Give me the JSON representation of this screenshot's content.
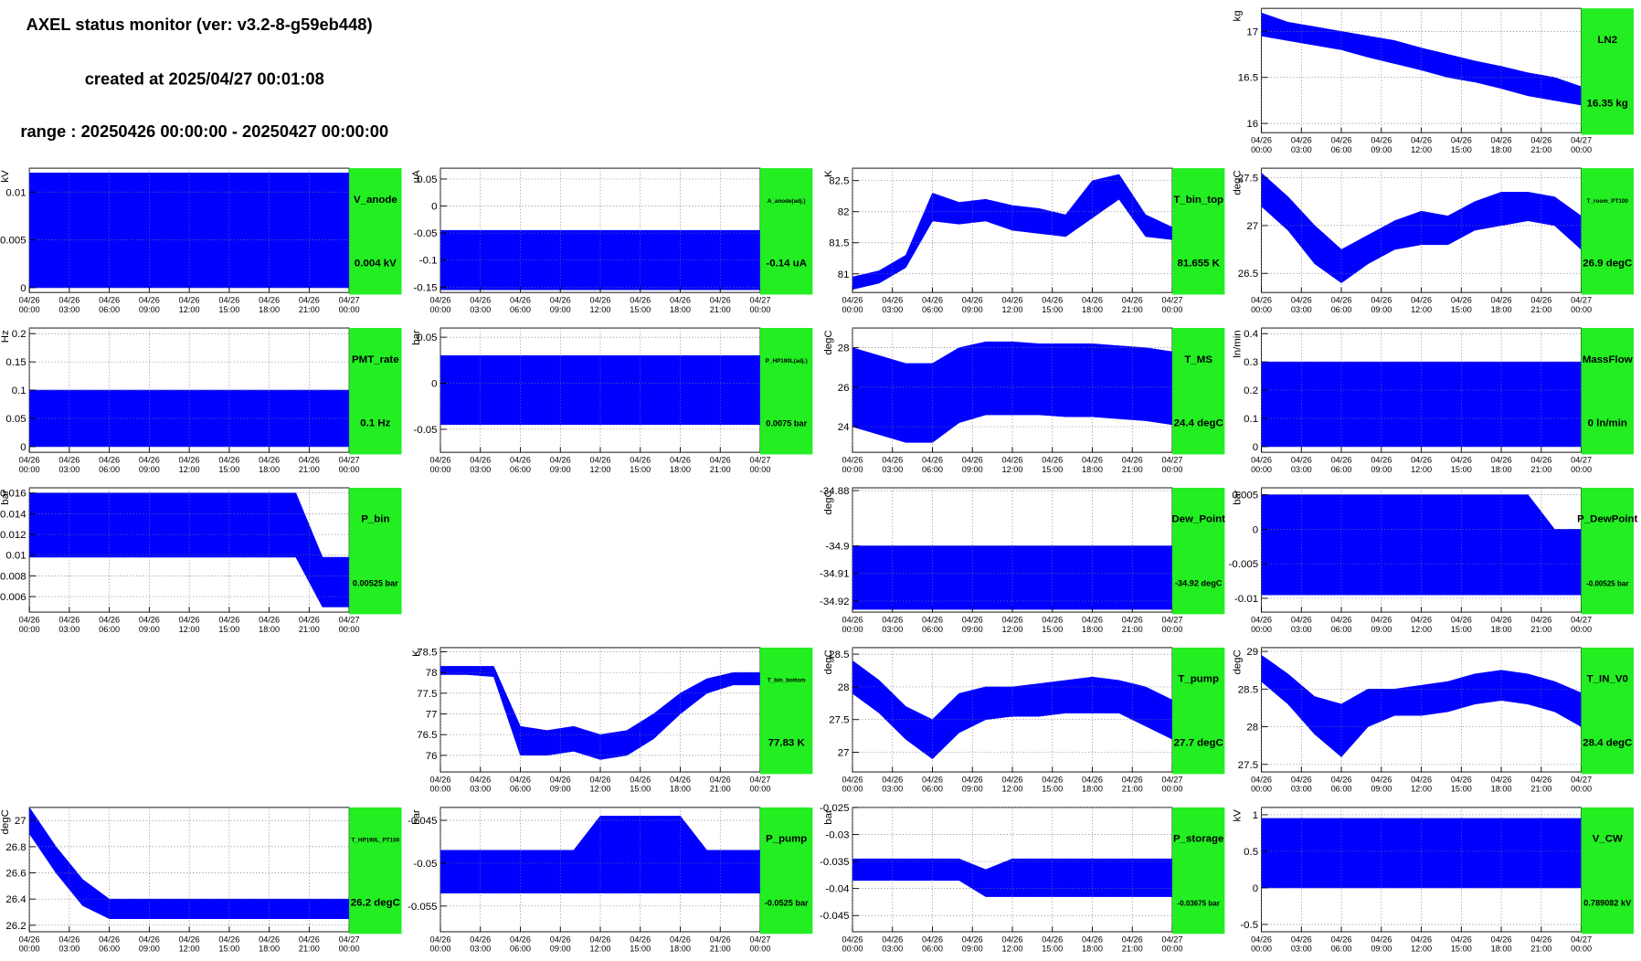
{
  "header": {
    "title": "AXEL status monitor (ver: v3.2-8-g59eb448)",
    "created": "created at 2025/04/27 00:01:08",
    "range": "range : 20250426 00:00:00 - 20250427 00:00:00"
  },
  "time_axis": {
    "xlim": [
      0,
      24
    ],
    "xticks": [
      {
        "value": 0,
        "label": "04/26 00:00"
      },
      {
        "value": 3,
        "label": "04/26 03:00"
      },
      {
        "value": 6,
        "label": "04/26 06:00"
      },
      {
        "value": 9,
        "label": "04/26 09:00"
      },
      {
        "value": 12,
        "label": "04/26 12:00"
      },
      {
        "value": 15,
        "label": "04/26 15:00"
      },
      {
        "value": 18,
        "label": "04/26 18:00"
      },
      {
        "value": 21,
        "label": "04/26 21:00"
      },
      {
        "value": 24,
        "label": "04/27 00:00"
      }
    ]
  },
  "chart_data": [
    {
      "type": "line",
      "title": "LN2",
      "ylabel": "kg",
      "status": "16.35 kg",
      "color": "#0000ff",
      "ylim": [
        15.9,
        17.25
      ],
      "yticks": [
        16,
        16.5,
        17
      ],
      "x": [
        0,
        2,
        4,
        6,
        8,
        10,
        12,
        14,
        16,
        18,
        20,
        22,
        24
      ],
      "high": [
        17.2,
        17.1,
        17.05,
        17.0,
        16.95,
        16.9,
        16.82,
        16.75,
        16.68,
        16.62,
        16.55,
        16.5,
        16.4
      ],
      "low": [
        16.95,
        16.9,
        16.85,
        16.8,
        16.72,
        16.65,
        16.58,
        16.5,
        16.45,
        16.38,
        16.3,
        16.25,
        16.2
      ]
    },
    {
      "type": "line",
      "title": "V_anode",
      "ylabel": "kV",
      "status": "0.004 kV",
      "color": "#0000ff",
      "ylim": [
        -0.0005,
        0.0125
      ],
      "yticks": [
        0,
        0.005,
        0.01
      ],
      "x": [
        0,
        2,
        4,
        6,
        8,
        10,
        12,
        14,
        16,
        18,
        20,
        22,
        24
      ],
      "high": [
        0.012,
        0.012,
        0.012,
        0.012,
        0.012,
        0.012,
        0.012,
        0.012,
        0.012,
        0.012,
        0.012,
        0.012,
        0.012
      ],
      "low": [
        0,
        0,
        0,
        0,
        0,
        0,
        0,
        0,
        0,
        0,
        0,
        0,
        0
      ]
    },
    {
      "type": "line",
      "title": "A_anode(adj.)",
      "ylabel": "uA",
      "status": "-0.14 uA",
      "color": "#0000ff",
      "ylim": [
        -0.16,
        0.07
      ],
      "yticks": [
        -0.15,
        -0.1,
        -0.05,
        0,
        0.05
      ],
      "x": [
        0,
        2,
        4,
        6,
        8,
        10,
        12,
        14,
        16,
        18,
        20,
        22,
        24
      ],
      "high": [
        -0.045,
        -0.045,
        -0.045,
        -0.045,
        -0.045,
        -0.045,
        -0.045,
        -0.045,
        -0.045,
        -0.045,
        -0.045,
        -0.045,
        -0.045
      ],
      "low": [
        -0.155,
        -0.155,
        -0.155,
        -0.155,
        -0.155,
        -0.155,
        -0.155,
        -0.155,
        -0.155,
        -0.155,
        -0.155,
        -0.155,
        -0.155
      ]
    },
    {
      "type": "line",
      "title": "T_bin_top",
      "ylabel": "K",
      "status": "81.655 K",
      "color": "#0000ff",
      "ylim": [
        80.7,
        82.7
      ],
      "yticks": [
        81,
        81.5,
        82,
        82.5
      ],
      "x": [
        0,
        2,
        4,
        6,
        8,
        10,
        12,
        14,
        16,
        18,
        20,
        22,
        24
      ],
      "high": [
        80.95,
        81.05,
        81.3,
        82.3,
        82.15,
        82.2,
        82.1,
        82.05,
        81.95,
        82.5,
        82.6,
        81.95,
        81.75
      ],
      "low": [
        80.75,
        80.85,
        81.1,
        81.85,
        81.8,
        81.85,
        81.7,
        81.65,
        81.6,
        81.9,
        82.2,
        81.6,
        81.55
      ]
    },
    {
      "type": "line",
      "title": "T_room_PT100",
      "ylabel": "degC",
      "status": "26.9 degC",
      "color": "#0000ff",
      "ylim": [
        26.3,
        27.6
      ],
      "yticks": [
        26.5,
        27,
        27.5
      ],
      "x": [
        0,
        2,
        4,
        6,
        8,
        10,
        12,
        14,
        16,
        18,
        20,
        22,
        24
      ],
      "high": [
        27.55,
        27.3,
        27.0,
        26.75,
        26.9,
        27.05,
        27.15,
        27.1,
        27.25,
        27.35,
        27.35,
        27.3,
        27.1
      ],
      "low": [
        27.2,
        26.95,
        26.6,
        26.4,
        26.6,
        26.75,
        26.8,
        26.8,
        26.95,
        27.0,
        27.05,
        27.0,
        26.75
      ]
    },
    {
      "type": "line",
      "title": "PMT_rate",
      "ylabel": "Hz",
      "status": "0.1 Hz",
      "color": "#0000ff",
      "ylim": [
        -0.01,
        0.21
      ],
      "yticks": [
        0,
        0.05,
        0.1,
        0.15,
        0.2
      ],
      "x": [
        0,
        2,
        4,
        6,
        8,
        10,
        12,
        14,
        16,
        18,
        20,
        22,
        24
      ],
      "high": [
        0.1,
        0.1,
        0.1,
        0.1,
        0.1,
        0.1,
        0.1,
        0.1,
        0.1,
        0.1,
        0.1,
        0.1,
        0.1
      ],
      "low": [
        0,
        0,
        0,
        0,
        0,
        0,
        0,
        0,
        0,
        0,
        0,
        0,
        0
      ]
    },
    {
      "type": "line",
      "title": "P_HP190L(adj.)",
      "ylabel": "bar",
      "status": "0.0075 bar",
      "color": "#0000ff",
      "ylim": [
        -0.075,
        0.06
      ],
      "yticks": [
        -0.05,
        0,
        0.05
      ],
      "x": [
        0,
        2,
        4,
        6,
        8,
        10,
        12,
        14,
        16,
        18,
        20,
        22,
        24
      ],
      "high": [
        0.03,
        0.03,
        0.03,
        0.03,
        0.03,
        0.03,
        0.03,
        0.03,
        0.03,
        0.03,
        0.03,
        0.03,
        0.03
      ],
      "low": [
        -0.045,
        -0.045,
        -0.045,
        -0.045,
        -0.045,
        -0.045,
        -0.045,
        -0.045,
        -0.045,
        -0.045,
        -0.045,
        -0.045,
        -0.045
      ]
    },
    {
      "type": "line",
      "title": "T_MS",
      "ylabel": "degC",
      "status": "24.4 degC",
      "color": "#0000ff",
      "ylim": [
        22.7,
        29
      ],
      "yticks": [
        24,
        26,
        28
      ],
      "x": [
        0,
        2,
        4,
        6,
        8,
        10,
        12,
        14,
        16,
        18,
        20,
        22,
        24
      ],
      "high": [
        28,
        27.6,
        27.2,
        27.2,
        28,
        28.3,
        28.3,
        28.2,
        28.2,
        28.2,
        28.1,
        28.0,
        27.8
      ],
      "low": [
        24,
        23.6,
        23.2,
        23.2,
        24.2,
        24.6,
        24.6,
        24.6,
        24.5,
        24.5,
        24.4,
        24.3,
        24.1
      ]
    },
    {
      "type": "line",
      "title": "MassFlow",
      "ylabel": "ln/min",
      "status": "0 ln/min",
      "color": "#0000ff",
      "ylim": [
        -0.02,
        0.42
      ],
      "yticks": [
        0,
        0.1,
        0.2,
        0.3,
        0.4
      ],
      "x": [
        0,
        2,
        4,
        6,
        8,
        10,
        12,
        14,
        16,
        18,
        20,
        22,
        24
      ],
      "high": [
        0.3,
        0.3,
        0.3,
        0.3,
        0.3,
        0.3,
        0.3,
        0.3,
        0.3,
        0.3,
        0.3,
        0.3,
        0.3
      ],
      "low": [
        0,
        0,
        0,
        0,
        0,
        0,
        0,
        0,
        0,
        0,
        0,
        0,
        0
      ]
    },
    {
      "type": "line",
      "title": "P_bin",
      "ylabel": "bar",
      "status": "0.00525 bar",
      "color": "#0000ff",
      "ylim": [
        0.0045,
        0.0165
      ],
      "yticks": [
        0.006,
        0.008,
        0.01,
        0.012,
        0.014,
        0.016
      ],
      "x": [
        0,
        2,
        4,
        6,
        8,
        10,
        12,
        14,
        16,
        18,
        20,
        22,
        24
      ],
      "high": [
        0.016,
        0.016,
        0.016,
        0.016,
        0.016,
        0.016,
        0.016,
        0.016,
        0.016,
        0.016,
        0.016,
        0.0098,
        0.0098
      ],
      "low": [
        0.0098,
        0.0098,
        0.0098,
        0.0098,
        0.0098,
        0.0098,
        0.0098,
        0.0098,
        0.0098,
        0.0098,
        0.0098,
        0.005,
        0.005
      ]
    },
    {
      "type": "line",
      "title": "Dew_Point",
      "ylabel": "degC",
      "status": "-34.92 degC",
      "color": "#0000ff",
      "ylim": [
        -34.924,
        -34.879
      ],
      "yticks": [
        -34.92,
        -34.91,
        -34.9,
        -34.88
      ],
      "x": [
        0,
        2,
        4,
        6,
        8,
        10,
        12,
        14,
        16,
        18,
        20,
        22,
        24
      ],
      "high": [
        -34.9,
        -34.9,
        -34.9,
        -34.9,
        -34.9,
        -34.9,
        -34.9,
        -34.9,
        -34.9,
        -34.9,
        -34.9,
        -34.9,
        -34.9
      ],
      "low": [
        -34.923,
        -34.923,
        -34.923,
        -34.923,
        -34.923,
        -34.923,
        -34.923,
        -34.923,
        -34.923,
        -34.923,
        -34.923,
        -34.923,
        -34.923
      ]
    },
    {
      "type": "line",
      "title": "P_DewPoint",
      "ylabel": "bar",
      "status": "-0.00525 bar",
      "color": "#0000ff",
      "ylim": [
        -0.012,
        0.006
      ],
      "yticks": [
        -0.01,
        -0.005,
        0,
        0.005
      ],
      "x": [
        0,
        2,
        4,
        6,
        8,
        10,
        12,
        14,
        16,
        18,
        20,
        22,
        24
      ],
      "high": [
        0.005,
        0.005,
        0.005,
        0.005,
        0.005,
        0.005,
        0.005,
        0.005,
        0.005,
        0.005,
        0.005,
        0,
        0
      ],
      "low": [
        -0.0095,
        -0.0095,
        -0.0095,
        -0.0095,
        -0.0095,
        -0.0095,
        -0.0095,
        -0.0095,
        -0.0095,
        -0.0095,
        -0.0095,
        -0.0095,
        -0.0095
      ]
    },
    {
      "type": "line",
      "title": "T_bin_bottom",
      "ylabel": "K",
      "status": "77.83 K",
      "color": "#0000ff",
      "ylim": [
        75.6,
        78.6
      ],
      "yticks": [
        76,
        76.5,
        77,
        77.5,
        78,
        78.5
      ],
      "x": [
        0,
        2,
        4,
        6,
        8,
        10,
        12,
        14,
        16,
        18,
        20,
        22,
        24
      ],
      "high": [
        78.15,
        78.15,
        78.15,
        76.7,
        76.6,
        76.7,
        76.5,
        76.6,
        77.0,
        77.5,
        77.85,
        78.0,
        78.0
      ],
      "low": [
        77.95,
        77.95,
        77.9,
        76.0,
        76.0,
        76.1,
        75.9,
        76.0,
        76.4,
        77.0,
        77.5,
        77.7,
        77.7
      ]
    },
    {
      "type": "line",
      "title": "T_pump",
      "ylabel": "degC",
      "status": "27.7 degC",
      "color": "#0000ff",
      "ylim": [
        26.7,
        28.6
      ],
      "yticks": [
        27,
        27.5,
        28,
        28.5
      ],
      "x": [
        0,
        2,
        4,
        6,
        8,
        10,
        12,
        14,
        16,
        18,
        20,
        22,
        24
      ],
      "high": [
        28.4,
        28.1,
        27.7,
        27.5,
        27.9,
        28.0,
        28.0,
        28.05,
        28.1,
        28.15,
        28.1,
        28.0,
        27.8
      ],
      "low": [
        27.9,
        27.6,
        27.2,
        26.9,
        27.3,
        27.5,
        27.55,
        27.55,
        27.6,
        27.6,
        27.6,
        27.4,
        27.2
      ]
    },
    {
      "type": "line",
      "title": "T_IN_V0",
      "ylabel": "degC",
      "status": "28.4 degC",
      "color": "#0000ff",
      "ylim": [
        27.4,
        29.05
      ],
      "yticks": [
        27.5,
        28,
        28.5,
        29
      ],
      "x": [
        0,
        2,
        4,
        6,
        8,
        10,
        12,
        14,
        16,
        18,
        20,
        22,
        24
      ],
      "high": [
        28.95,
        28.7,
        28.4,
        28.3,
        28.5,
        28.5,
        28.55,
        28.6,
        28.7,
        28.75,
        28.7,
        28.6,
        28.45
      ],
      "low": [
        28.6,
        28.3,
        27.9,
        27.6,
        28.0,
        28.15,
        28.15,
        28.2,
        28.3,
        28.35,
        28.3,
        28.2,
        28.0
      ]
    },
    {
      "type": "line",
      "title": "T_HP190L_PT100",
      "ylabel": "degC",
      "status": "26.2 degC",
      "color": "#0000ff",
      "ylim": [
        26.15,
        27.1
      ],
      "yticks": [
        26.2,
        26.4,
        26.6,
        26.8,
        27
      ],
      "x": [
        0,
        2,
        4,
        6,
        8,
        10,
        12,
        14,
        16,
        18,
        20,
        22,
        24
      ],
      "high": [
        27.1,
        26.8,
        26.55,
        26.4,
        26.4,
        26.4,
        26.4,
        26.4,
        26.4,
        26.4,
        26.4,
        26.4,
        26.4
      ],
      "low": [
        26.9,
        26.6,
        26.35,
        26.25,
        26.25,
        26.25,
        26.25,
        26.25,
        26.25,
        26.25,
        26.25,
        26.25,
        26.25
      ]
    },
    {
      "type": "line",
      "title": "P_pump",
      "ylabel": "bar",
      "status": "-0.0525 bar",
      "color": "#0000ff",
      "ylim": [
        -0.058,
        -0.0435
      ],
      "yticks": [
        -0.055,
        -0.05,
        -0.045
      ],
      "x": [
        0,
        2,
        4,
        6,
        8,
        10,
        12,
        14,
        16,
        18,
        20,
        22,
        24
      ],
      "high": [
        -0.0485,
        -0.0485,
        -0.0485,
        -0.0485,
        -0.0485,
        -0.0485,
        -0.0445,
        -0.0445,
        -0.0445,
        -0.0445,
        -0.0485,
        -0.0485,
        -0.0485
      ],
      "low": [
        -0.0535,
        -0.0535,
        -0.0535,
        -0.0535,
        -0.0535,
        -0.0535,
        -0.0535,
        -0.0535,
        -0.0535,
        -0.0535,
        -0.0535,
        -0.0535,
        -0.0535
      ]
    },
    {
      "type": "line",
      "title": "P_storage",
      "ylabel": "bar",
      "status": "-0.03675 bar",
      "color": "#0000ff",
      "ylim": [
        -0.048,
        -0.025
      ],
      "yticks": [
        -0.045,
        -0.04,
        -0.035,
        -0.03,
        -0.025
      ],
      "x": [
        0,
        2,
        4,
        6,
        8,
        10,
        12,
        14,
        16,
        18,
        20,
        22,
        24
      ],
      "high": [
        -0.0345,
        -0.0345,
        -0.0345,
        -0.0345,
        -0.0345,
        -0.0365,
        -0.0345,
        -0.0345,
        -0.0345,
        -0.0345,
        -0.0345,
        -0.0345,
        -0.0345
      ],
      "low": [
        -0.0385,
        -0.0385,
        -0.0385,
        -0.0385,
        -0.0385,
        -0.0415,
        -0.0415,
        -0.0415,
        -0.0415,
        -0.0415,
        -0.0415,
        -0.0415,
        -0.0415
      ]
    },
    {
      "type": "line",
      "title": "V_CW",
      "ylabel": "kV",
      "status": "0.789082 kV",
      "color": "#0000ff",
      "ylim": [
        -0.6,
        1.1
      ],
      "yticks": [
        -0.5,
        0,
        0.5,
        1
      ],
      "x": [
        0,
        2,
        4,
        6,
        8,
        10,
        12,
        14,
        16,
        18,
        20,
        22,
        24
      ],
      "high": [
        0.95,
        0.95,
        0.95,
        0.95,
        0.95,
        0.95,
        0.95,
        0.95,
        0.95,
        0.95,
        0.95,
        0.95,
        0.95
      ],
      "low": [
        0,
        0,
        0,
        0,
        0,
        0,
        0,
        0,
        0,
        0,
        0,
        0,
        0
      ]
    }
  ]
}
